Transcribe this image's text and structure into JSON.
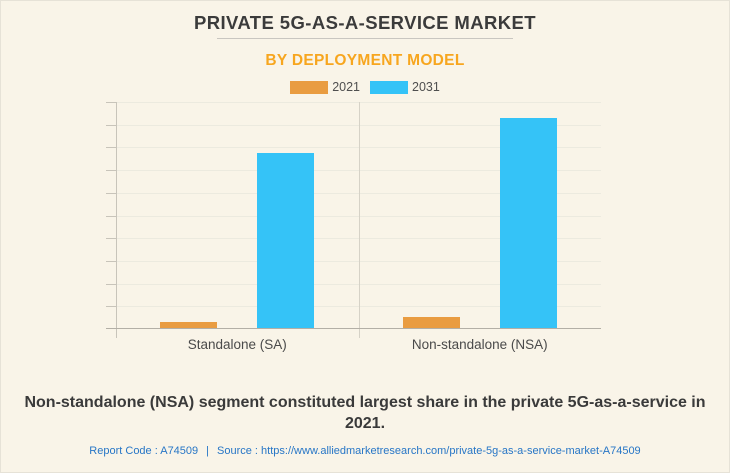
{
  "header": {
    "title": "PRIVATE 5G-AS-A-SERVICE MARKET",
    "subtitle": "BY DEPLOYMENT MODEL"
  },
  "legend": [
    {
      "label": "2021",
      "color": "#e99c41"
    },
    {
      "label": "2031",
      "color": "#35c3f7"
    }
  ],
  "chart_data": {
    "type": "bar",
    "categories": [
      "Standalone (SA)",
      "Non-standalone (NSA)"
    ],
    "series": [
      {
        "name": "2021",
        "color": "#e99c41",
        "values": [
          0.3,
          0.55
        ]
      },
      {
        "name": "2031",
        "color": "#35c3f7",
        "values": [
          7.75,
          9.3
        ]
      }
    ],
    "title": "PRIVATE 5G-AS-A-SERVICE MARKET",
    "subtitle": "BY DEPLOYMENT MODEL",
    "xlabel": "",
    "ylabel": "",
    "ylim": [
      0,
      10
    ],
    "y_gridline_count": 10,
    "y_tick_labels_visible": false,
    "grid": true,
    "legend_position": "top"
  },
  "caption": "Non-standalone (NSA) segment constituted largest share in the private 5G-as-a-service in 2021.",
  "footer": {
    "report_code": "Report Code : A74509",
    "separator": "|",
    "source": "Source : https://www.alliedmarketresearch.com/private-5g-as-a-service-market-A74509"
  },
  "colors": {
    "background": "#f9f4e8",
    "title_text": "#3b3b3b",
    "subtitle_accent": "#f7a61f",
    "series_2021": "#e99c41",
    "series_2031": "#35c3f7",
    "link_blue": "#2776c6"
  }
}
